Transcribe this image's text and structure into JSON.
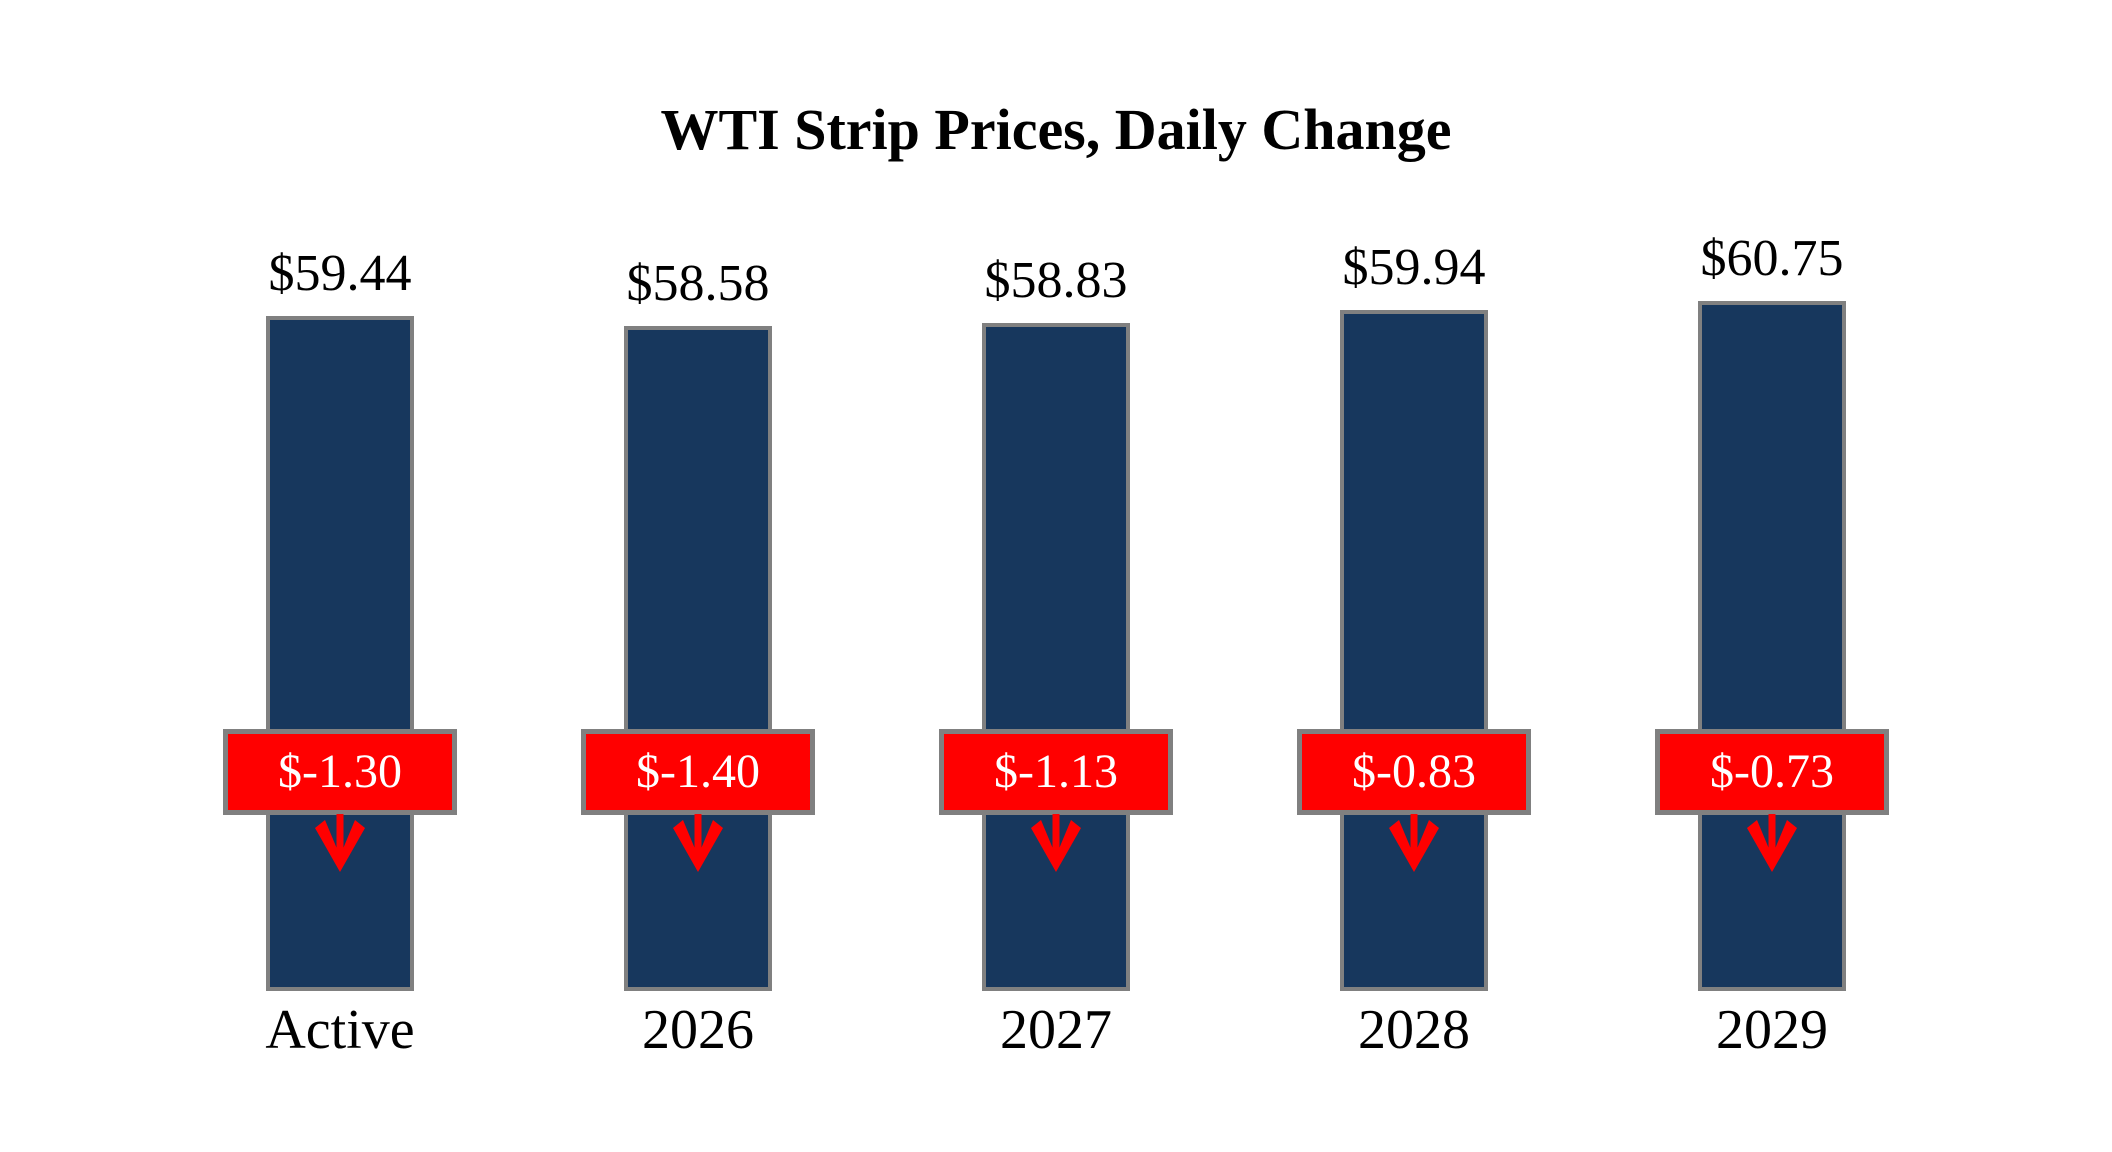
{
  "title": "WTI Strip Prices, Daily Change",
  "colors": {
    "bar_fill": "#17375D",
    "bar_border": "#808080",
    "badge_fill": "#FF0000",
    "badge_border": "#808080",
    "badge_text": "#FFFFFF",
    "arrow": "#FF0000",
    "text": "#000000",
    "background": "#FFFFFF"
  },
  "chart_data": {
    "type": "bar",
    "title": "WTI Strip Prices, Daily Change",
    "categories": [
      "Active",
      "2026",
      "2027",
      "2028",
      "2029"
    ],
    "series": [
      {
        "name": "Strip Price",
        "values": [
          59.44,
          58.58,
          58.83,
          59.94,
          60.75
        ],
        "labels": [
          "$59.44",
          "$58.58",
          "$58.83",
          "$59.94",
          "$60.75"
        ]
      },
      {
        "name": "Daily Change",
        "values": [
          -1.3,
          -1.4,
          -1.13,
          -0.83,
          -0.73
        ],
        "labels": [
          "$-1.30",
          "$-1.40",
          "$-1.13",
          "$-0.83",
          "$-0.73"
        ]
      }
    ],
    "ylim": [
      0,
      65
    ],
    "xlabel": "",
    "ylabel": "",
    "grid": false,
    "legend": false,
    "annotations": "red badge with daily change and red down arrow centered on each bar"
  }
}
